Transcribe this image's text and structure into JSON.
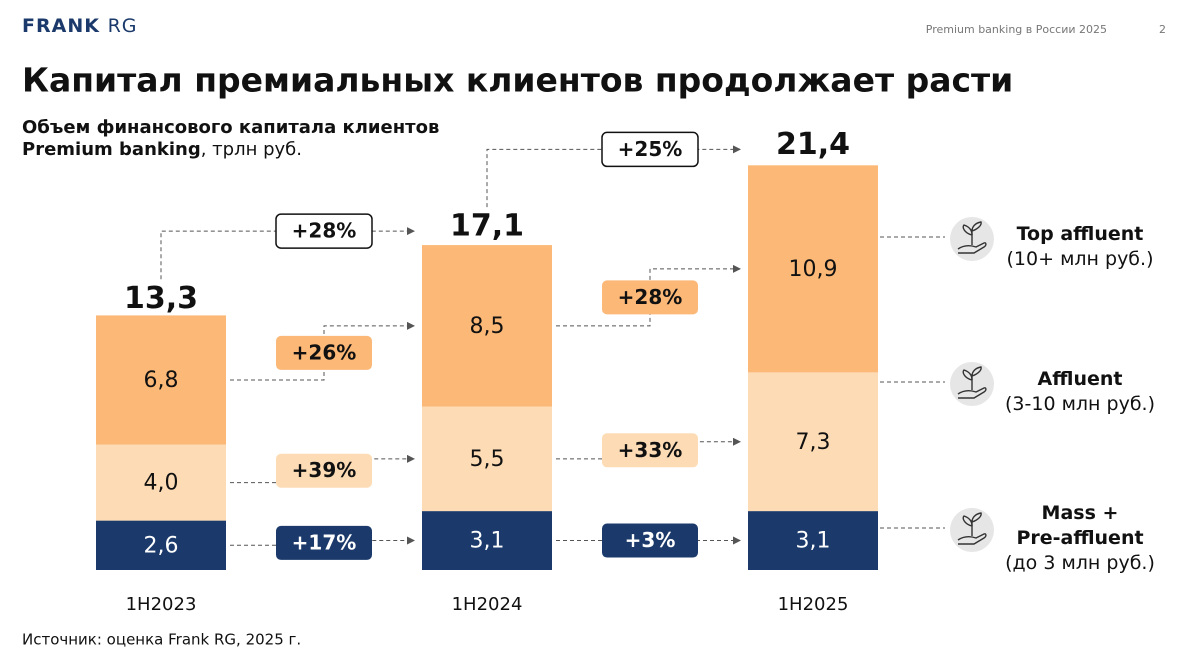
{
  "header": {
    "logo_bold": "FRANK",
    "logo_light": "RG",
    "report": "Premium banking в России 2025",
    "page": "2"
  },
  "title": "Капитал премиальных клиентов продолжает расти",
  "source": "Источник: оценка Frank RG, 2025 г.",
  "chart_data": {
    "type": "stacked_bar",
    "subtitle": {
      "line1": "Объем финансового капитала клиентов",
      "bold": "Premium banking",
      "rest": ", трлн руб."
    },
    "categories": [
      "1H2023",
      "1H2024",
      "1H2025"
    ],
    "series": [
      {
        "name": "Mass +\nPre-affluent",
        "note": "(до 3 млн руб.)",
        "color": "#1b3a6b",
        "values": [
          2.6,
          3.1,
          3.1
        ],
        "value_labels": [
          "2,6",
          "3,1",
          "3,1"
        ],
        "growth": [
          "+17%",
          "+3%"
        ]
      },
      {
        "name": "Affluent",
        "note": "(3-10 млн руб.)",
        "color": "#fddcb5",
        "values": [
          4.0,
          5.5,
          7.3
        ],
        "value_labels": [
          "4,0",
          "5,5",
          "7,3"
        ],
        "growth": [
          "+39%",
          "+33%"
        ]
      },
      {
        "name": "Top affluent",
        "note": "(10+ млн руб.)",
        "color": "#fbb877",
        "values": [
          6.8,
          8.5,
          10.9
        ],
        "value_labels": [
          "6,8",
          "8,5",
          "10,9"
        ],
        "growth": [
          "+26%",
          "+28%"
        ]
      }
    ],
    "totals": {
      "values": [
        13.3,
        17.1,
        21.4
      ],
      "value_labels": [
        "13,3",
        "17,1",
        "21,4"
      ],
      "growth": [
        "+28%",
        "+25%"
      ]
    }
  }
}
